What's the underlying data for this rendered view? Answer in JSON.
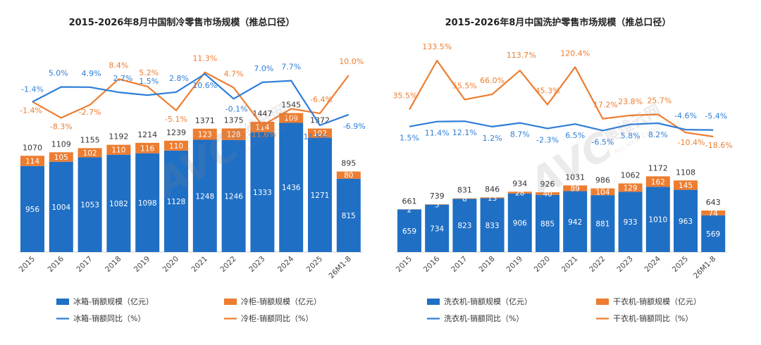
{
  "chart_data": [
    {
      "type": "bar",
      "title": "2015-2026年8月中国制冷零售市场规模（推总口径）",
      "categories": [
        "2015",
        "2016",
        "2017",
        "2018",
        "2019",
        "2020",
        "2021",
        "2022",
        "2023",
        "2024",
        "2025",
        "26M1-8"
      ],
      "totals": [
        "1070",
        "1109",
        "1155",
        "1192",
        "1214",
        "1239",
        "1371",
        "1375",
        "1447",
        "1545",
        "1372",
        "895"
      ],
      "series": [
        {
          "name": "冰箱-销额规模（亿元）",
          "kind": "bar",
          "color": "#1f6fc5",
          "values": [
            956,
            1004,
            1053,
            1082,
            1098,
            1128,
            1248,
            1246,
            1333,
            1436,
            1271,
            815
          ]
        },
        {
          "name": "冷柜-销额规模（亿元）",
          "kind": "bar",
          "color": "#ed7d31",
          "values": [
            114,
            105,
            102,
            110,
            116,
            110,
            123,
            128,
            114,
            109,
            102,
            80
          ]
        },
        {
          "name": "冰箱-销额同比（%）",
          "kind": "line",
          "color": "#2f7ed8",
          "values": [
            -1.4,
            5.0,
            4.9,
            2.7,
            1.5,
            2.8,
            10.6,
            -0.1,
            7.0,
            7.7,
            -11.5,
            -6.9
          ],
          "labels": [
            "-1.4%",
            "5.0%",
            "4.9%",
            "2.7%",
            "1.5%",
            "2.8%",
            "10.6%",
            "-0.1%",
            "7.0%",
            "7.7%",
            "-11.5%",
            "-6.9%"
          ]
        },
        {
          "name": "冷柜-销额同比（%）",
          "kind": "line",
          "color": "#ed7d31",
          "values": [
            -1.4,
            -8.3,
            -2.7,
            8.4,
            5.2,
            -5.1,
            11.3,
            4.7,
            -11.6,
            -4.4,
            -6.4,
            10.0
          ],
          "labels": [
            "-1.4%",
            "-8.3%",
            "-2.7%",
            "8.4%",
            "5.2%",
            "-5.1%",
            "11.3%",
            "4.7%",
            "-11.6%",
            "-4.4%",
            "-6.4%",
            "10.0%"
          ]
        }
      ],
      "legend": "bottom"
    },
    {
      "type": "bar",
      "title": "2015-2026年8月中国洗护零售市场规模（推总口径）",
      "categories": [
        "2015",
        "2016",
        "2017",
        "2018",
        "2019",
        "2020",
        "2021",
        "2022",
        "2023",
        "2024",
        "2025",
        "26M1-8"
      ],
      "totals": [
        "661",
        "739",
        "831",
        "846",
        "934",
        "926",
        "1031",
        "986",
        "1062",
        "1172",
        "1108",
        "643"
      ],
      "series": [
        {
          "name": "洗衣机-销额规模（亿元）",
          "kind": "bar",
          "color": "#1f6fc5",
          "values": [
            659,
            734,
            823,
            833,
            906,
            885,
            942,
            881,
            933,
            1010,
            963,
            569
          ]
        },
        {
          "name": "干衣机-销额规模（亿元）",
          "kind": "bar",
          "color": "#ed7d31",
          "values": [
            2,
            5,
            8,
            13,
            28,
            40,
            89,
            104,
            129,
            162,
            145,
            74
          ]
        },
        {
          "name": "洗衣机-销额同比（%）",
          "kind": "line",
          "color": "#2f7ed8",
          "values": [
            1.5,
            11.4,
            12.1,
            1.2,
            8.7,
            -2.3,
            6.5,
            -6.5,
            5.8,
            8.2,
            -4.6,
            -5.4
          ],
          "labels": [
            "1.5%",
            "11.4%",
            "12.1%",
            "1.2%",
            "8.7%",
            "-2.3%",
            "6.5%",
            "-6.5%",
            "5.8%",
            "8.2%",
            "-4.6%",
            "-5.4%"
          ]
        },
        {
          "name": "干衣机-销额同比（%）",
          "kind": "line",
          "color": "#ed7d31",
          "values": [
            35.5,
            133.5,
            55.5,
            66.0,
            113.7,
            45.3,
            120.4,
            17.2,
            23.8,
            25.7,
            -10.4,
            -18.6
          ],
          "labels": [
            "35.5%",
            "133.5%",
            "55.5%",
            "66.0%",
            "113.7%",
            "45.3%",
            "120.4%",
            "17.2%",
            "23.8%",
            "25.7%",
            "-10.4%",
            "-18.6%"
          ]
        }
      ],
      "legend": "bottom"
    }
  ],
  "watermark": {
    "brand": "AVC",
    "cn": "奥维云网",
    "en": "ALL VIEW CLOUD"
  }
}
